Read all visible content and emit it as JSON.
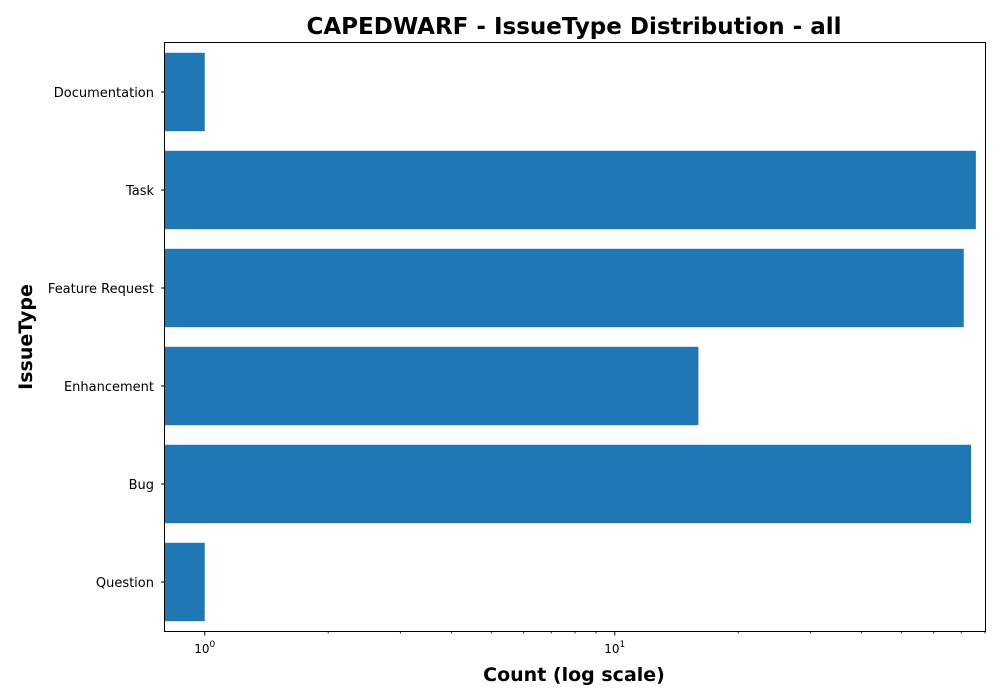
{
  "chart_data": {
    "type": "bar",
    "orientation": "horizontal",
    "title": "CAPEDWARF - IssueType Distribution - all",
    "xlabel": "Count (log scale)",
    "ylabel": "IssueType",
    "x_scale": "log",
    "xlim": [
      0.8,
      80
    ],
    "x_ticks": [
      {
        "value": 1,
        "base": "10",
        "exp": "0"
      },
      {
        "value": 10,
        "base": "10",
        "exp": "1"
      }
    ],
    "categories": [
      "Documentation",
      "Task",
      "Feature Request",
      "Enhancement",
      "Bug",
      "Question"
    ],
    "values": [
      1,
      76,
      71,
      16,
      74,
      1
    ],
    "bar_color": "#1f77b4",
    "grid": false,
    "legend": false
  }
}
